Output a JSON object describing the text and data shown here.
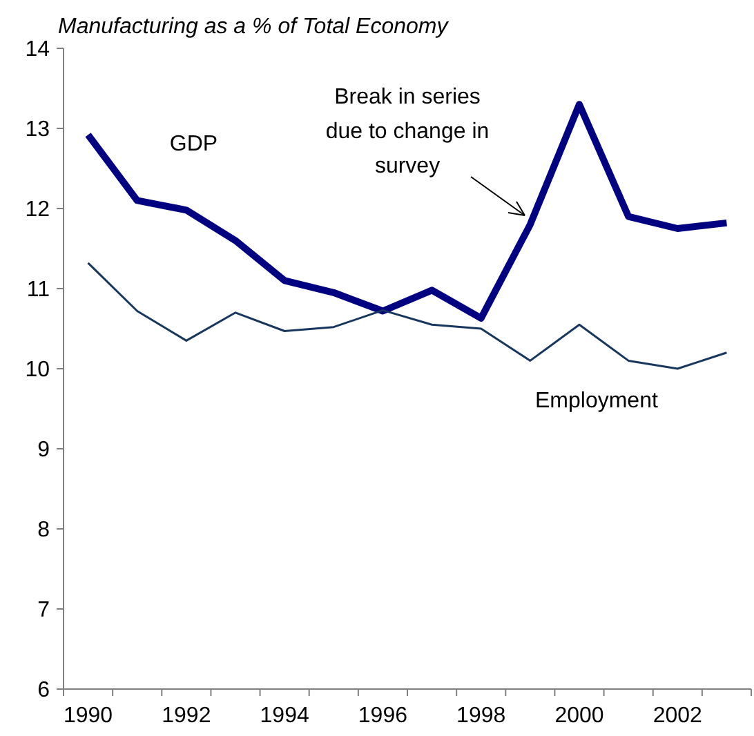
{
  "chart_data": {
    "type": "line",
    "title": "Manufacturing as a % of Total Economy",
    "categories": [
      "1990",
      null,
      "1992",
      null,
      "1994",
      null,
      "1996",
      null,
      "1998",
      null,
      "2000",
      null,
      "2002",
      null
    ],
    "series": [
      {
        "name": "GDP",
        "color": "#000080",
        "values": [
          12.92,
          12.1,
          11.98,
          11.6,
          11.1,
          10.95,
          10.72,
          10.98,
          10.63,
          11.8,
          13.3,
          11.9,
          11.75,
          11.82
        ]
      },
      {
        "name": "Employment",
        "color": "#17375e",
        "values": [
          11.32,
          10.72,
          10.35,
          10.7,
          10.47,
          10.52,
          10.73,
          10.55,
          10.5,
          10.1,
          10.55,
          10.1,
          10.0,
          10.2
        ]
      }
    ],
    "ylim": [
      6,
      14
    ],
    "yticks": [
      6,
      7,
      8,
      9,
      10,
      11,
      12,
      13,
      14
    ],
    "grid": false,
    "marker": "none",
    "line_style": "solid",
    "annotations": [
      "Break in series\ndue to change in\nsurvey"
    ]
  }
}
